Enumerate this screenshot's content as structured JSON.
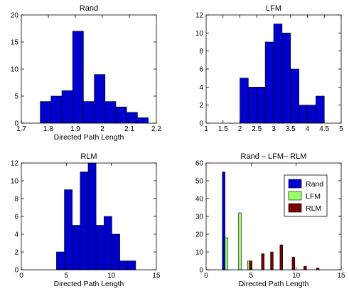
{
  "chart_data": [
    {
      "type": "bar",
      "title": "Rand",
      "xlabel": "Directed Path Length",
      "ylabel": "",
      "xlim": [
        1.7,
        2.2
      ],
      "ylim": [
        0,
        20
      ],
      "xticks": [
        1.7,
        1.8,
        1.9,
        2,
        2.1,
        2.2
      ],
      "xtick_labels": [
        "1.7",
        "1.8",
        "1.9",
        "2",
        "2.1",
        "2.2"
      ],
      "yticks": [
        0,
        5,
        10,
        15,
        20
      ],
      "ytick_labels": [
        "0",
        "5",
        "10",
        "15",
        "20"
      ],
      "bin_edges": [
        1.77,
        1.81,
        1.85,
        1.89,
        1.93,
        1.97,
        2.01,
        2.05,
        2.09,
        2.13,
        2.17
      ],
      "values": [
        4,
        5,
        6,
        17,
        4,
        9,
        4,
        3,
        2,
        1
      ],
      "color": "#0000cc",
      "grid": false
    },
    {
      "type": "bar",
      "title": "LFM",
      "xlabel": "",
      "ylabel": "",
      "xlim": [
        1,
        5
      ],
      "ylim": [
        0,
        12
      ],
      "xticks": [
        1,
        1.5,
        2,
        2.5,
        3,
        3.5,
        4,
        4.5,
        5
      ],
      "xtick_labels": [
        "1",
        "1.5",
        "2",
        "2.5",
        "3",
        "3.5",
        "4",
        "4.5",
        "5"
      ],
      "yticks": [
        0,
        2,
        4,
        6,
        8,
        10,
        12
      ],
      "ytick_labels": [
        "0",
        "2",
        "4",
        "6",
        "8",
        "10",
        "12"
      ],
      "bin_edges": [
        2.0,
        2.25,
        2.5,
        2.75,
        3.0,
        3.25,
        3.5,
        3.75,
        4.0,
        4.25,
        4.5
      ],
      "values": [
        5,
        4,
        4,
        9,
        11,
        10,
        6,
        2,
        2,
        3
      ],
      "color": "#0000cc",
      "grid": false
    },
    {
      "type": "bar",
      "title": "RLM",
      "xlabel": "Directed Path Length",
      "ylabel": "",
      "xlim": [
        0,
        15
      ],
      "ylim": [
        0,
        12
      ],
      "xticks": [
        0,
        5,
        10,
        15
      ],
      "xtick_labels": [
        "0",
        "5",
        "10",
        "15"
      ],
      "yticks": [
        0,
        2,
        4,
        6,
        8,
        10,
        12
      ],
      "ytick_labels": [
        "0",
        "2",
        "4",
        "6",
        "8",
        "10",
        "12"
      ],
      "bin_edges": [
        3.9,
        4.78,
        5.66,
        6.54,
        7.42,
        8.3,
        9.18,
        10.06,
        10.94,
        11.82,
        12.7
      ],
      "values": [
        2,
        9,
        5,
        11,
        12,
        5,
        6,
        4,
        1,
        1
      ],
      "color": "#0000cc",
      "grid": false
    },
    {
      "type": "bar",
      "title": "Rand – LFM– RLM",
      "xlabel": "Directed Path Length",
      "ylabel": "",
      "xlim": [
        0,
        15
      ],
      "ylim": [
        0,
        60
      ],
      "xticks": [
        0,
        5,
        10,
        15
      ],
      "xtick_labels": [
        "0",
        "5",
        "10",
        "15"
      ],
      "yticks": [
        0,
        10,
        20,
        30,
        40,
        50,
        60
      ],
      "ytick_labels": [
        "0",
        "10",
        "20",
        "30",
        "40",
        "50",
        "60"
      ],
      "bar_width": 0.3,
      "legend_placement": "top-right",
      "series": [
        {
          "name": "Rand",
          "color": "#0000cc",
          "x": [
            1.95,
            2.1
          ],
          "values": [
            55,
            0
          ]
        },
        {
          "name": "LFM",
          "color": "#99ff66",
          "x": [
            2.25,
            3.75,
            4.75
          ],
          "values": [
            18,
            32,
            5
          ]
        },
        {
          "name": "RLM",
          "color": "#7a0000",
          "x": [
            4.95,
            6.3,
            7.3,
            8.35,
            9.7,
            11.0,
            12.4
          ],
          "values": [
            5,
            9,
            10,
            14,
            7,
            2,
            1
          ]
        }
      ],
      "grid": false
    }
  ]
}
